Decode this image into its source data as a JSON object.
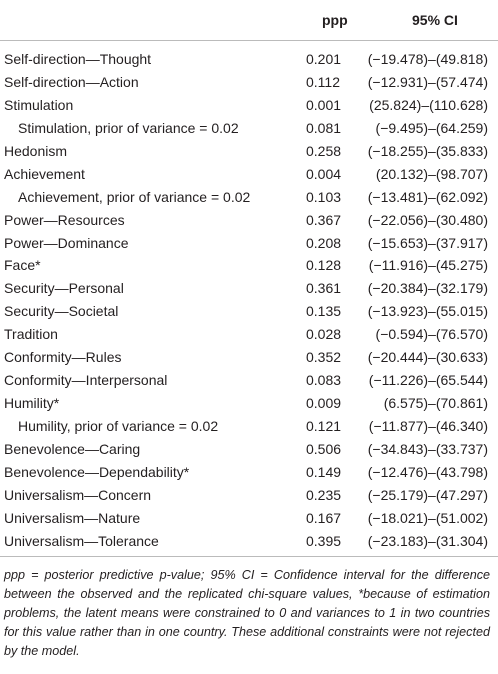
{
  "table": {
    "header": [
      "ppp",
      "95% CI"
    ],
    "rows": [
      [
        "Self-direction—Thought",
        "0.201",
        "(−19.478)–(49.818)"
      ],
      [
        "Self-direction—Action",
        "0.112",
        "(−12.931)–(57.474)"
      ],
      [
        "Stimulation",
        "0.001",
        "(25.824)–(110.628)"
      ],
      [
        "Stimulation, prior of variance = 0.02",
        "0.081",
        "(−9.495)–(64.259)"
      ],
      [
        "Hedonism",
        "0.258",
        "(−18.255)–(35.833)"
      ],
      [
        "Achievement",
        "0.004",
        "(20.132)–(98.707)"
      ],
      [
        "Achievement, prior of variance = 0.02",
        "0.103",
        "(−13.481)–(62.092)"
      ],
      [
        "Power—Resources",
        "0.367",
        "(−22.056)–(30.480)"
      ],
      [
        "Power—Dominance",
        "0.208",
        "(−15.653)–(37.917)"
      ],
      [
        "Face*",
        "0.128",
        "(−11.916)–(45.275)"
      ],
      [
        "Security—Personal",
        "0.361",
        "(−20.384)–(32.179)"
      ],
      [
        "Security—Societal",
        "0.135",
        "(−13.923)–(55.015)"
      ],
      [
        "Tradition",
        "0.028",
        "(−0.594)–(76.570)"
      ],
      [
        "Conformity—Rules",
        "0.352",
        "(−20.444)–(30.633)"
      ],
      [
        "Conformity—Interpersonal",
        "0.083",
        "(−11.226)–(65.544)"
      ],
      [
        "Humility*",
        "0.009",
        "(6.575)–(70.861)"
      ],
      [
        "Humility, prior of variance = 0.02",
        "0.121",
        "(−11.877)–(46.340)"
      ],
      [
        "Benevolence—Caring",
        "0.506",
        "(−34.843)–(33.737)"
      ],
      [
        "Benevolence—Dependability*",
        "0.149",
        "(−12.476)–(43.798)"
      ],
      [
        "Universalism—Concern",
        "0.235",
        "(−25.179)–(47.297)"
      ],
      [
        "Universalism—Nature",
        "0.167",
        "(−18.021)–(51.002)"
      ],
      [
        "Universalism—Tolerance",
        "0.395",
        "(−23.183)–(31.304)"
      ]
    ],
    "footnote": "ppp = posterior predictive p-value; 95% CI = Confidence interval for the difference between the observed and the replicated chi-square values, *because of estimation problems, the latent means were constrained to 0 and variances to 1 in two countries for this value rather than in one country. These additional constraints were not rejected by the model."
  }
}
